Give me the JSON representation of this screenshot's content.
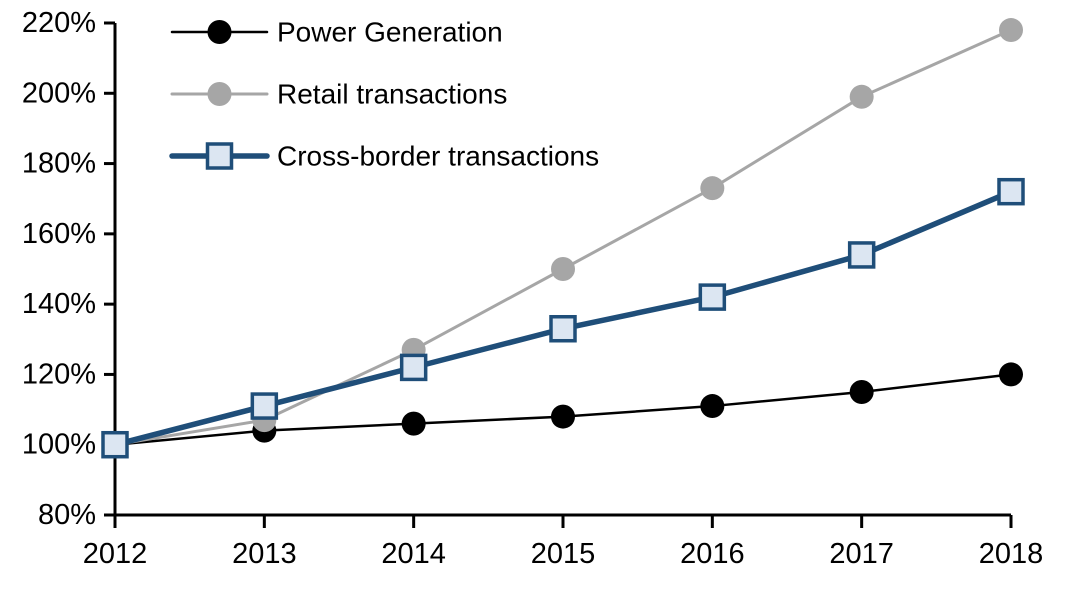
{
  "chart_data": {
    "type": "line",
    "title": "",
    "xlabel": "",
    "ylabel": "",
    "x": [
      2012,
      2013,
      2014,
      2015,
      2016,
      2017,
      2018
    ],
    "xtick_labels": [
      "2012",
      "2013",
      "2014",
      "2015",
      "2016",
      "2017",
      "2018"
    ],
    "ylim": [
      80,
      220
    ],
    "ytick_step": 20,
    "ytick_labels": [
      "80%",
      "100%",
      "120%",
      "140%",
      "160%",
      "180%",
      "200%",
      "220%"
    ],
    "grid": false,
    "legend_position": "top-left",
    "series": [
      {
        "name": "Power Generation",
        "values": [
          100,
          104,
          106,
          108,
          111,
          115,
          120
        ],
        "color": "#000000",
        "marker": "circle",
        "marker_fill": "#000000",
        "line_width": 2.5
      },
      {
        "name": "Retail transactions",
        "values": [
          100,
          107,
          127,
          150,
          173,
          199,
          218
        ],
        "color": "#A6A6A6",
        "marker": "circle",
        "marker_fill": "#A6A6A6",
        "line_width": 3
      },
      {
        "name": "Cross-border transactions",
        "values": [
          100,
          111,
          122,
          133,
          142,
          154,
          172
        ],
        "color": "#1F4E79",
        "marker": "square",
        "marker_fill": "#DCE6F2",
        "line_width": 5.5
      }
    ],
    "colors": {
      "axis": "#000000",
      "background": "#FFFFFF",
      "text": "#000000"
    }
  }
}
